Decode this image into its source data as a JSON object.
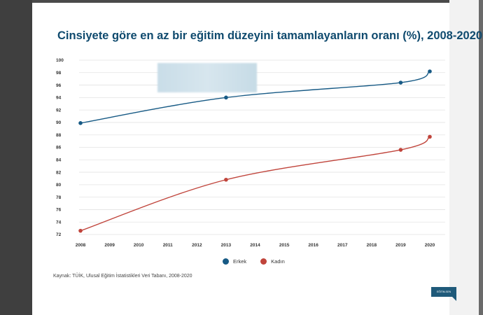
{
  "title": "Cinsiyete göre en az bir eğitim düzeyini tamamlayanların oranı (%), 2008-2020",
  "source": "Kaynak: TÜİK, Ulusal Eğitim İstatistikleri Veri Tabanı, 2008-2020",
  "logo_text": "EĞİTİM-SEN",
  "colors": {
    "erkek": "#175a85",
    "kadin": "#c0443b",
    "title": "#0f4a6e"
  },
  "chart_data": {
    "type": "line",
    "title": "Cinsiyete göre en az bir eğitim düzeyini tamamlayanların oranı (%), 2008-2020",
    "xlabel": "",
    "ylabel": "",
    "categories": [
      "2008",
      "2009",
      "2010",
      "2011",
      "2012",
      "2013",
      "2014",
      "2015",
      "2016",
      "2017",
      "2018",
      "2019",
      "2020"
    ],
    "y_ticks": [
      72,
      74,
      76,
      78,
      80,
      82,
      84,
      86,
      88,
      90,
      92,
      94,
      96,
      98,
      100
    ],
    "ylim": [
      72,
      100
    ],
    "grid": true,
    "legend_position": "bottom",
    "series": [
      {
        "name": "Erkek",
        "color": "#175a85",
        "x": [
          "2008",
          "2013",
          "2019",
          "2020"
        ],
        "values": [
          89.9,
          94.0,
          96.4,
          98.2
        ]
      },
      {
        "name": "Kadın",
        "color": "#c0443b",
        "x": [
          "2008",
          "2013",
          "2019",
          "2020"
        ],
        "values": [
          72.6,
          80.8,
          85.6,
          87.7
        ]
      }
    ]
  }
}
